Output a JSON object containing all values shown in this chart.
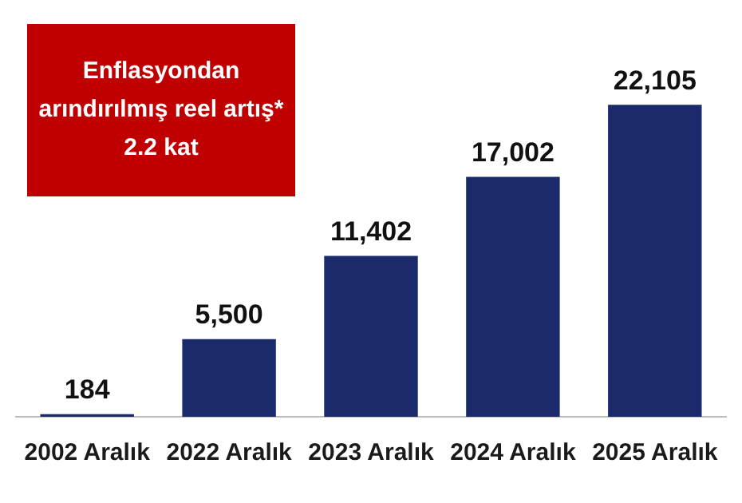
{
  "chart_data": {
    "type": "bar",
    "categories": [
      "2002 Aralık",
      "2022 Aralık",
      "2023 Aralık",
      "2024 Aralık",
      "2025 Aralık"
    ],
    "values": [
      184,
      5500,
      11402,
      17002,
      22105
    ],
    "color": "#1b2a6b",
    "value_labels": [
      "184",
      "5,500",
      "11,402",
      "17,002",
      "22,105"
    ],
    "grid": false,
    "legend": false,
    "tick_labels": "x",
    "annotations": [
      "Enflasyondan\narındırılmış reel artış*\n2.2 kat"
    ]
  }
}
